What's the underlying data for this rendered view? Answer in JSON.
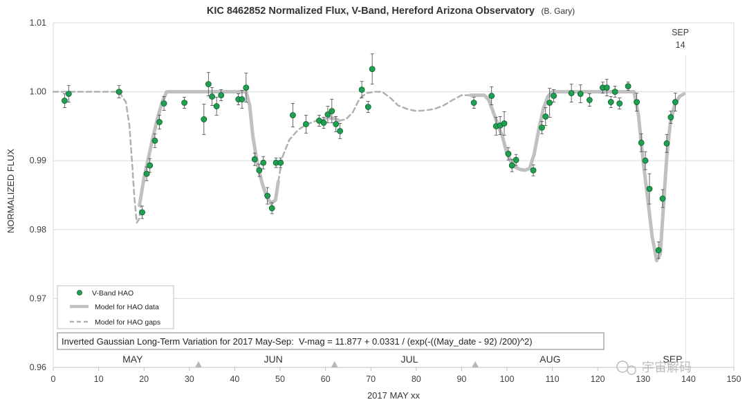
{
  "chart_data": {
    "type": "scatter",
    "title": "KIC 8462852 Normalized Flux, V-Band, Hereford Arizona Observatory",
    "title_suffix": "(B. Gary)",
    "xlabel": "2017 MAY xx",
    "ylabel": "NORMALIZED FLUX",
    "xlim": [
      0,
      150
    ],
    "ylim": [
      0.96,
      1.01
    ],
    "x_ticks": [
      0,
      10,
      20,
      30,
      40,
      50,
      60,
      70,
      80,
      90,
      100,
      110,
      120,
      130,
      140,
      150
    ],
    "y_ticks": [
      0.96,
      0.97,
      0.98,
      0.99,
      1.0,
      1.01
    ],
    "y_tick_labels": [
      "0.96",
      "0.97",
      "0.98",
      "0.99",
      "1.00",
      "1.01"
    ],
    "grid": "horizontal",
    "legend_placement": "bottom-left",
    "colors": {
      "points": "#1ea050",
      "model": "#c0c0c0",
      "gaps": "#b0b0b0",
      "errorbars": "#555555",
      "markers": "#b8b8b8"
    },
    "series": [
      {
        "name": "V-Band HAO",
        "style": "points",
        "points": [
          {
            "x": 2.5,
            "y": 0.9987,
            "err": 0.001
          },
          {
            "x": 3.4,
            "y": 0.9997,
            "err": 0.0012
          },
          {
            "x": 14.5,
            "y": 1.0,
            "err": 0.0009
          },
          {
            "x": 19.6,
            "y": 0.9825,
            "err": 0.0009
          },
          {
            "x": 20.6,
            "y": 0.9881,
            "err": 0.001
          },
          {
            "x": 21.3,
            "y": 0.9893,
            "err": 0.001
          },
          {
            "x": 22.4,
            "y": 0.9929,
            "err": 0.001
          },
          {
            "x": 23.4,
            "y": 0.9956,
            "err": 0.001
          },
          {
            "x": 24.4,
            "y": 0.9983,
            "err": 0.001
          },
          {
            "x": 28.9,
            "y": 0.9984,
            "err": 0.0008
          },
          {
            "x": 33.2,
            "y": 0.996,
            "err": 0.0022
          },
          {
            "x": 34.2,
            "y": 1.0011,
            "err": 0.0017
          },
          {
            "x": 35.0,
            "y": 0.9993,
            "err": 0.0013
          },
          {
            "x": 36.0,
            "y": 0.9979,
            "err": 0.0013
          },
          {
            "x": 37.0,
            "y": 0.9995,
            "err": 0.0008
          },
          {
            "x": 40.8,
            "y": 0.9989,
            "err": 0.0008
          },
          {
            "x": 41.6,
            "y": 0.9989,
            "err": 0.0013
          },
          {
            "x": 42.5,
            "y": 1.0006,
            "err": 0.0021
          },
          {
            "x": 44.4,
            "y": 0.9902,
            "err": 0.0009
          },
          {
            "x": 45.4,
            "y": 0.9886,
            "err": 0.0009
          },
          {
            "x": 46.3,
            "y": 0.9897,
            "err": 0.0009
          },
          {
            "x": 47.2,
            "y": 0.9849,
            "err": 0.0012
          },
          {
            "x": 48.2,
            "y": 0.9831,
            "err": 0.0008
          },
          {
            "x": 49.1,
            "y": 0.9897,
            "err": 0.0007
          },
          {
            "x": 50.1,
            "y": 0.9897,
            "err": 0.0007
          },
          {
            "x": 52.8,
            "y": 0.9966,
            "err": 0.0017
          },
          {
            "x": 55.7,
            "y": 0.9953,
            "err": 0.0013
          },
          {
            "x": 58.6,
            "y": 0.9958,
            "err": 0.0008
          },
          {
            "x": 59.6,
            "y": 0.9955,
            "err": 0.0008
          },
          {
            "x": 60.5,
            "y": 0.9967,
            "err": 0.0012
          },
          {
            "x": 61.4,
            "y": 0.9972,
            "err": 0.0017
          },
          {
            "x": 62.3,
            "y": 0.9953,
            "err": 0.0011
          },
          {
            "x": 63.2,
            "y": 0.9943,
            "err": 0.0011
          },
          {
            "x": 68.0,
            "y": 1.0003,
            "err": 0.0012
          },
          {
            "x": 69.4,
            "y": 0.9978,
            "err": 0.0008
          },
          {
            "x": 70.3,
            "y": 1.0033,
            "err": 0.0022
          },
          {
            "x": 92.7,
            "y": 0.9984,
            "err": 0.0008
          },
          {
            "x": 96.6,
            "y": 0.9994,
            "err": 0.0013
          },
          {
            "x": 97.6,
            "y": 0.995,
            "err": 0.0013
          },
          {
            "x": 98.5,
            "y": 0.9951,
            "err": 0.0013
          },
          {
            "x": 99.4,
            "y": 0.9954,
            "err": 0.0017
          },
          {
            "x": 100.3,
            "y": 0.991,
            "err": 0.0009
          },
          {
            "x": 101.1,
            "y": 0.9893,
            "err": 0.0009
          },
          {
            "x": 102.0,
            "y": 0.9901,
            "err": 0.0008
          },
          {
            "x": 105.8,
            "y": 0.9886,
            "err": 0.0008
          },
          {
            "x": 107.7,
            "y": 0.9948,
            "err": 0.0009
          },
          {
            "x": 108.5,
            "y": 0.9964,
            "err": 0.0013
          },
          {
            "x": 109.4,
            "y": 0.9984,
            "err": 0.0021
          },
          {
            "x": 110.3,
            "y": 0.9994,
            "err": 0.0009
          },
          {
            "x": 114.2,
            "y": 0.9998,
            "err": 0.0013
          },
          {
            "x": 116.2,
            "y": 0.9997,
            "err": 0.0013
          },
          {
            "x": 118.2,
            "y": 0.9988,
            "err": 0.0009
          },
          {
            "x": 121.1,
            "y": 1.0006,
            "err": 0.0008
          },
          {
            "x": 122.0,
            "y": 1.0006,
            "err": 0.0012
          },
          {
            "x": 122.9,
            "y": 0.9985,
            "err": 0.0008
          },
          {
            "x": 123.8,
            "y": 1.0,
            "err": 0.0008
          },
          {
            "x": 124.8,
            "y": 0.9983,
            "err": 0.0008
          },
          {
            "x": 126.7,
            "y": 1.0008,
            "err": 0.0006
          },
          {
            "x": 128.6,
            "y": 0.9985,
            "err": 0.0013
          },
          {
            "x": 129.6,
            "y": 0.9926,
            "err": 0.0013
          },
          {
            "x": 130.5,
            "y": 0.99,
            "err": 0.0013
          },
          {
            "x": 131.4,
            "y": 0.9859,
            "err": 0.0022
          },
          {
            "x": 133.4,
            "y": 0.977,
            "err": 0.0012
          },
          {
            "x": 134.3,
            "y": 0.9845,
            "err": 0.0013
          },
          {
            "x": 135.2,
            "y": 0.9925,
            "err": 0.0013
          },
          {
            "x": 136.1,
            "y": 0.9963,
            "err": 0.0009
          },
          {
            "x": 137.1,
            "y": 0.9985,
            "err": 0.0013
          }
        ]
      },
      {
        "name": "Model for HAO data",
        "style": "solid",
        "segments": [
          [
            [
              14.5,
              1.0
            ],
            [
              14.0,
              1.0
            ],
            [
              15.0,
              1.0
            ]
          ],
          [
            [
              19.0,
              0.9835
            ],
            [
              20.0,
              0.9875
            ],
            [
              21.0,
              0.9905
            ],
            [
              22.0,
              0.9935
            ],
            [
              23.0,
              0.9962
            ],
            [
              24.0,
              0.9985
            ],
            [
              25.0,
              1.0
            ],
            [
              42.5,
              1.0
            ],
            [
              43.3,
              0.998
            ],
            [
              44.0,
              0.9935
            ],
            [
              45.0,
              0.9895
            ],
            [
              46.0,
              0.9868
            ],
            [
              47.0,
              0.9848
            ],
            [
              48.0,
              0.9838
            ],
            [
              49.0,
              0.9843
            ],
            [
              49.6,
              0.987
            ]
          ],
          [
            [
              61.0,
              0.9962
            ],
            [
              62.0,
              0.9961
            ],
            [
              63.0,
              0.9958
            ]
          ],
          [
            [
              92.0,
              0.9995
            ],
            [
              95.0,
              0.9995
            ],
            [
              96.0,
              0.9988
            ],
            [
              97.0,
              0.997
            ],
            [
              98.0,
              0.9952
            ],
            [
              99.0,
              0.9935
            ],
            [
              100.0,
              0.991
            ],
            [
              101.0,
              0.9897
            ],
            [
              102.0,
              0.989
            ],
            [
              103.0,
              0.9887
            ],
            [
              104.0,
              0.9886
            ],
            [
              105.0,
              0.9889
            ],
            [
              106.0,
              0.991
            ],
            [
              107.0,
              0.9945
            ],
            [
              108.0,
              0.9975
            ],
            [
              109.0,
              0.9993
            ],
            [
              110.0,
              1.0
            ],
            [
              128.0,
              1.0
            ],
            [
              129.0,
              0.9965
            ],
            [
              130.0,
              0.99
            ],
            [
              131.0,
              0.9845
            ],
            [
              132.0,
              0.979
            ],
            [
              133.0,
              0.9755
            ],
            [
              133.8,
              0.9765
            ],
            [
              134.5,
              0.9835
            ],
            [
              135.2,
              0.9905
            ],
            [
              136.0,
              0.9955
            ],
            [
              137.0,
              0.9982
            ],
            [
              138.0,
              0.9993
            ],
            [
              139.0,
              0.9997
            ]
          ]
        ]
      },
      {
        "name": "Model for HAO gaps",
        "style": "dashed",
        "segments": [
          [
            [
              0.0,
              1.0
            ],
            [
              8.0,
              1.0
            ],
            [
              14.5,
              1.0
            ],
            [
              16.0,
              0.9985
            ],
            [
              16.8,
              0.995
            ],
            [
              17.4,
              0.9895
            ],
            [
              17.9,
              0.9845
            ],
            [
              18.4,
              0.981
            ],
            [
              18.9,
              0.9815
            ],
            [
              19.3,
              0.9835
            ]
          ],
          [
            [
              49.6,
              0.987
            ],
            [
              50.5,
              0.9905
            ],
            [
              52.0,
              0.993
            ],
            [
              54.0,
              0.9945
            ],
            [
              56.0,
              0.9953
            ],
            [
              58.0,
              0.9958
            ],
            [
              61.0,
              0.9962
            ]
          ],
          [
            [
              63.0,
              0.9958
            ],
            [
              64.5,
              0.996
            ],
            [
              66.0,
              0.997
            ],
            [
              67.5,
              0.999
            ],
            [
              69.0,
              0.9998
            ],
            [
              71.0,
              1.0
            ],
            [
              72.5,
              1.0
            ],
            [
              74.5,
              0.999
            ],
            [
              76.0,
              0.998
            ],
            [
              78.0,
              0.9975
            ],
            [
              80.0,
              0.9972
            ],
            [
              82.0,
              0.9973
            ],
            [
              84.0,
              0.9975
            ],
            [
              86.0,
              0.998
            ],
            [
              88.0,
              0.9988
            ],
            [
              90.0,
              0.9995
            ],
            [
              92.0,
              0.9995
            ]
          ]
        ]
      }
    ],
    "month_labels": [
      {
        "label": "MAY",
        "x": 17.5
      },
      {
        "label": "JUN",
        "x": 48.5
      },
      {
        "label": "JUL",
        "x": 78.5
      },
      {
        "label": "AUG",
        "x": 109.5
      },
      {
        "label": "SEP",
        "x": 136.5
      }
    ],
    "month_markers_x": [
      32,
      62,
      93
    ],
    "sep14_label": [
      "SEP",
      "14"
    ],
    "sep14_x": 139.4,
    "formula": "Inverted Gaussian Long-Term Variation for 2017 May-Sep:  V-mag = 11.877 + 0.0331 / (exp(-((May_date - 92) /200)^2)",
    "watermark": "宇宙解码"
  }
}
